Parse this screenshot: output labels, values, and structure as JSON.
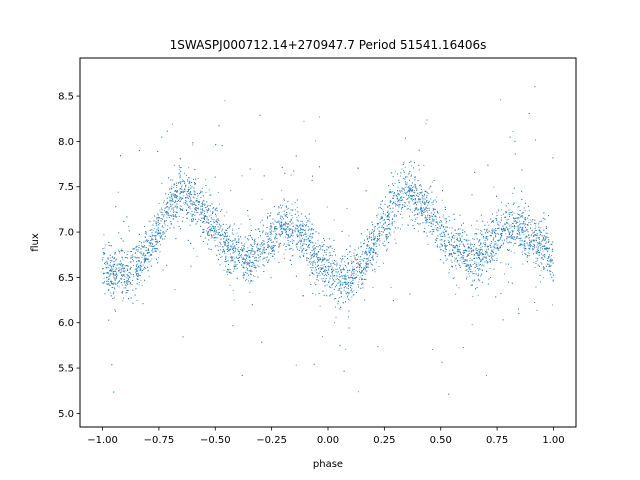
{
  "chart_data": {
    "type": "scatter",
    "title": "1SWASPJ000712.14+270947.7 Period 51541.16406s",
    "xlabel": "phase",
    "ylabel": "flux",
    "xlim": [
      -1.1,
      1.1
    ],
    "ylim": [
      4.85,
      8.92
    ],
    "x_ticks": [
      -1.0,
      -0.75,
      -0.5,
      -0.25,
      0.0,
      0.25,
      0.5,
      0.75,
      1.0
    ],
    "x_tick_labels": [
      "−1.00",
      "−0.75",
      "−0.50",
      "−0.25",
      "0.00",
      "0.25",
      "0.50",
      "0.75",
      "1.00"
    ],
    "y_ticks": [
      5.0,
      5.5,
      6.0,
      6.5,
      7.0,
      7.5,
      8.0,
      8.5
    ],
    "y_tick_labels": [
      "5.0",
      "5.5",
      "6.0",
      "6.5",
      "7.0",
      "7.5",
      "8.0",
      "8.5"
    ],
    "grid": false,
    "point_color": "#1f77b4",
    "series": [
      {
        "phase": [
          -1.0,
          -0.95,
          -0.9,
          -0.85,
          -0.8,
          -0.75,
          -0.7,
          -0.65,
          -0.6,
          -0.55,
          -0.5,
          -0.45,
          -0.4,
          -0.35,
          -0.3,
          -0.25,
          -0.2,
          -0.15,
          -0.1,
          -0.05,
          0.0,
          0.05,
          0.1,
          0.15,
          0.2,
          0.25,
          0.3,
          0.35,
          0.4,
          0.45,
          0.5,
          0.55,
          0.6,
          0.65,
          0.7,
          0.75,
          0.8,
          0.85,
          0.9,
          0.95,
          1.0
        ],
        "flux": [
          6.65,
          6.55,
          6.55,
          6.6,
          6.8,
          7.0,
          7.3,
          7.45,
          7.35,
          7.2,
          7.0,
          6.85,
          6.75,
          6.7,
          6.8,
          6.95,
          7.05,
          7.05,
          6.9,
          6.7,
          6.6,
          6.5,
          6.5,
          6.6,
          6.85,
          7.1,
          7.35,
          7.45,
          7.35,
          7.2,
          7.0,
          6.85,
          6.75,
          6.7,
          6.8,
          6.95,
          7.05,
          7.05,
          6.95,
          6.85,
          6.7
        ]
      }
    ]
  }
}
